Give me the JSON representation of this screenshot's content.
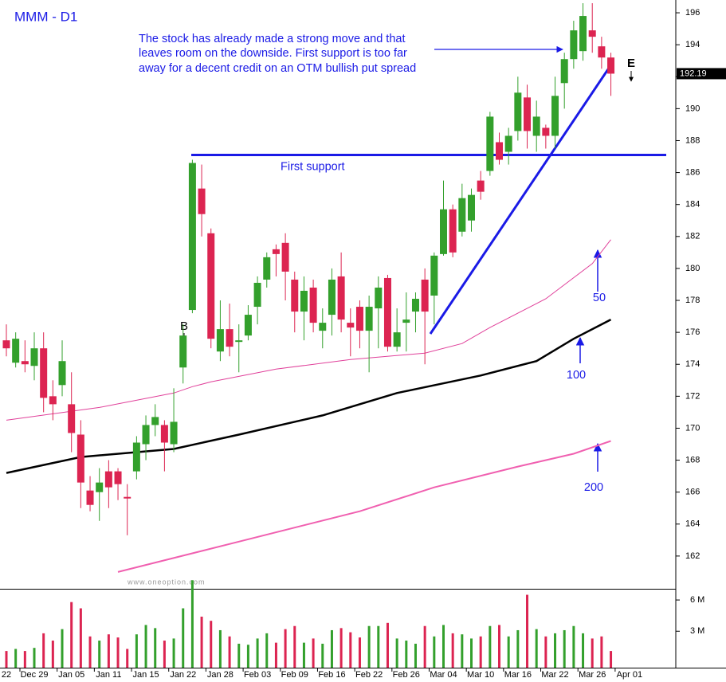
{
  "chart_data": {
    "type": "candlestick",
    "title": "MMM - D1",
    "annotation": [
      "The stock has already made a strong move and that",
      "leaves room on the downside. First support is too far",
      "away for a decent credit on an OTM bullish put spread"
    ],
    "support_label": "First support",
    "support_level": 187.1,
    "marker_buy": "B",
    "marker_exit": "E",
    "watermark": "www.oneoption.com",
    "last_price": 192.19,
    "up_color": "#33a02c",
    "down_color": "#dc2451",
    "categories": [
      "22",
      null,
      null,
      "Dec 29",
      null,
      null,
      null,
      "Jan 05",
      null,
      null,
      null,
      "Jan 11",
      null,
      null,
      null,
      "Jan 15",
      null,
      null,
      null,
      "Jan 22",
      null,
      null,
      null,
      "Jan 28",
      null,
      null,
      null,
      "Feb 03",
      null,
      null,
      null,
      "Feb 09",
      null,
      null,
      null,
      "Feb 16",
      null,
      null,
      null,
      "Feb 22",
      null,
      null,
      null,
      "Feb 26",
      null,
      null,
      null,
      "Mar 04",
      null,
      null,
      null,
      "Mar 10",
      null,
      null,
      null,
      "Mar 16",
      null,
      null,
      null,
      "Mar 22",
      null,
      null,
      null,
      "Mar 26",
      null,
      null,
      null,
      "Apr 01"
    ],
    "open": [
      175.5,
      174.1,
      174.2,
      173.9,
      175,
      172,
      172.7,
      171.5,
      169.6,
      166.1,
      166,
      167.3,
      167.3,
      165.7,
      167.3,
      169,
      170.2,
      170.2,
      169,
      173.8,
      177.4,
      185,
      182.2,
      174.8,
      176.2,
      175.4,
      175.8,
      177.6,
      179.3,
      181.2,
      181.6,
      179.3,
      177.3,
      178.8,
      176.1,
      177.1,
      179.5,
      176.6,
      177.6,
      176.1,
      177.5,
      179.4,
      175.1,
      176.6,
      177.3,
      179.3,
      178.3,
      180.9,
      183.7,
      182.3,
      183,
      185.5,
      186.1,
      187.9,
      187.3,
      188.6,
      190.7,
      188.3,
      188.8,
      188.3,
      191.6,
      193.1,
      193.6,
      194.9,
      193.9,
      193.2,
      null,
      null
    ],
    "high": [
      176.5,
      176,
      175.5,
      176,
      176,
      173,
      175.5,
      173.5,
      170.5,
      167,
      167.5,
      168,
      167.5,
      166.5,
      169.5,
      170.8,
      171.5,
      170.5,
      172.5,
      176.5,
      186.8,
      186.5,
      182.5,
      178,
      177.8,
      176.5,
      177.7,
      179.5,
      181,
      181.5,
      182.2,
      179.8,
      179.5,
      179.3,
      177.5,
      180,
      181,
      177.5,
      178,
      178.3,
      179.5,
      179.6,
      177.5,
      178.5,
      178.5,
      180,
      181,
      185.5,
      184,
      185.3,
      185,
      186.1,
      189.8,
      188.5,
      188.8,
      192,
      191.5,
      190.5,
      189,
      192,
      193.5,
      195.5,
      196.6,
      196.6,
      194.5,
      193.5,
      null,
      null
    ],
    "low": [
      174.5,
      173.8,
      173.5,
      173,
      171,
      170.5,
      172,
      168.5,
      165,
      164.8,
      164.2,
      165,
      165.5,
      163.3,
      166.8,
      168,
      169.5,
      167.3,
      168.5,
      172.8,
      177.2,
      182,
      175,
      174.2,
      174.5,
      173.5,
      175.5,
      176.5,
      178.8,
      179.5,
      178,
      176,
      175.5,
      176,
      175,
      175.8,
      176,
      174.5,
      175,
      173.5,
      175,
      174.8,
      174.8,
      174.8,
      176,
      174,
      176.5,
      180.8,
      180.7,
      182,
      182.3,
      184.3,
      185.8,
      186.5,
      186.5,
      188,
      187.5,
      187.3,
      187.5,
      187.5,
      190,
      192.5,
      193,
      193.5,
      192.5,
      190.8,
      null,
      null
    ],
    "close": [
      175,
      175.6,
      174,
      175,
      171.9,
      171.5,
      174.2,
      169.7,
      166.6,
      165.2,
      166.6,
      166.3,
      166.5,
      165.6,
      169.1,
      170.2,
      170.7,
      169.1,
      170.4,
      175.8,
      186.6,
      183.4,
      175.6,
      176.2,
      175.1,
      175.5,
      177.1,
      179.1,
      180.7,
      180.9,
      179.8,
      177.3,
      178.6,
      176.6,
      176.6,
      179.3,
      176.8,
      176.3,
      176.1,
      177.6,
      178.8,
      175.1,
      176,
      176.8,
      178.1,
      177.3,
      180.8,
      183.7,
      181,
      184.4,
      184.6,
      184.8,
      189.5,
      186.8,
      188.3,
      191,
      188.6,
      189.5,
      188.3,
      190.8,
      193.1,
      194.9,
      195.8,
      194.5,
      193.2,
      192.19,
      null,
      null
    ],
    "volume": [
      1.1,
      1.3,
      1.1,
      1.4,
      2.8,
      2.1,
      3.2,
      5.8,
      5.2,
      2.5,
      2.1,
      2.7,
      2.4,
      1.3,
      2.7,
      3.6,
      3.3,
      2.1,
      2.3,
      5.2,
      7.9,
      4.4,
      4.0,
      3.1,
      2.5,
      1.8,
      1.7,
      2.3,
      2.8,
      1.9,
      3.2,
      3.5,
      1.9,
      2.3,
      1.8,
      3.1,
      3.3,
      2.9,
      2.4,
      3.5,
      3.5,
      3.8,
      2.3,
      2.1,
      1.8,
      3.5,
      2.5,
      3.6,
      2.8,
      2.7,
      2.3,
      2.5,
      3.5,
      3.6,
      2.5,
      3.1,
      6.5,
      3.2,
      2.5,
      2.8,
      3.1,
      3.5,
      2.8,
      2.3,
      2.5,
      1.1,
      null,
      null
    ],
    "ylim": [
      160,
      196.8
    ],
    "yticks": [
      162,
      164,
      166,
      168,
      170,
      172,
      174,
      176,
      178,
      180,
      182,
      184,
      186,
      188,
      190,
      192,
      194,
      196
    ],
    "volume_ylim": [
      -0.5,
      7
    ],
    "volume_ticks": [
      {
        "value": 3,
        "label": "3 M"
      },
      {
        "value": 6,
        "label": "6 M"
      }
    ],
    "moving_averages": [
      {
        "name": "50",
        "color": "#e0409a",
        "width": 1,
        "x": [
          0,
          10,
          18,
          20,
          22,
          29,
          37,
          45,
          49,
          52,
          58,
          63,
          65
        ],
        "values": [
          170.5,
          171.3,
          172.2,
          172.6,
          172.9,
          173.7,
          174.3,
          174.7,
          175.3,
          176.3,
          178.1,
          180.3,
          181.8
        ]
      },
      {
        "name": "100",
        "color": "#000000",
        "width": 2.5,
        "x": [
          0,
          8,
          18,
          25,
          34,
          42,
          51,
          57,
          61,
          65
        ],
        "values": [
          167.2,
          168.2,
          168.7,
          169.6,
          170.8,
          172.2,
          173.3,
          174.2,
          175.6,
          176.8
        ]
      },
      {
        "name": "200",
        "color": "#f060b0",
        "width": 2,
        "x": [
          12,
          25,
          38,
          46,
          55,
          61,
          65
        ],
        "values": [
          161,
          162.9,
          164.8,
          166.3,
          167.6,
          168.4,
          169.2
        ]
      }
    ]
  }
}
